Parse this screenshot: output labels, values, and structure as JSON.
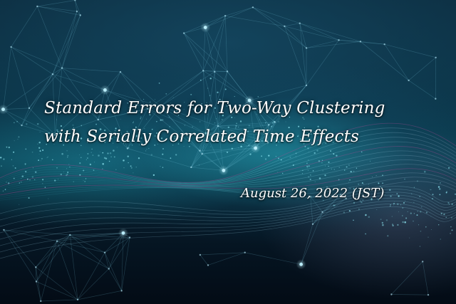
{
  "background": {
    "icon": "network-particle-wave-image",
    "colors": {
      "deep": "#04101c",
      "teal": "#2aa8be",
      "line": "#7fd3e6",
      "accent_magenta": "#c04a9a"
    }
  },
  "title": {
    "line1": "Standard Errors for Two-Way Clustering",
    "line2": "with Serially Correlated Time Effects"
  },
  "date": "August 26, 2022 (JST)"
}
